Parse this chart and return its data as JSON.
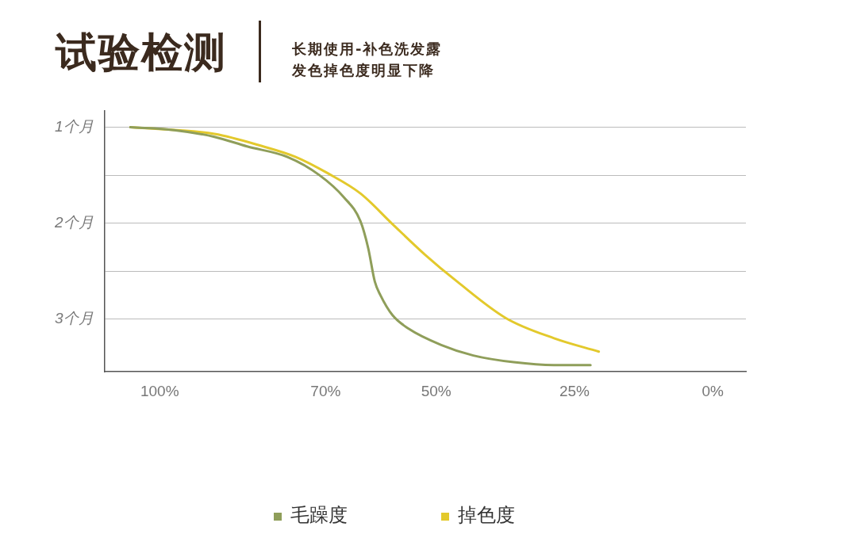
{
  "chart_data": {
    "type": "line",
    "title": "试验检测",
    "subtitle": "长期使用-补色洗发露发色掉色度明显下降",
    "xlim": [
      110,
      -6
    ],
    "xticks": [
      {
        "value": 100,
        "label": "100%"
      },
      {
        "value": 70,
        "label": "70%"
      },
      {
        "value": 50,
        "label": "50%"
      },
      {
        "value": 25,
        "label": "25%"
      },
      {
        "value": 0,
        "label": "0%"
      }
    ],
    "ylim": [
      3.55,
      0.83
    ],
    "yticks": [
      {
        "value": 1,
        "label": "1个月"
      },
      {
        "value": 1.5,
        "label": null
      },
      {
        "value": 2,
        "label": "2个月"
      },
      {
        "value": 2.5,
        "label": null
      },
      {
        "value": 3,
        "label": "3个月"
      }
    ],
    "grid": "y",
    "legend": "bottom",
    "marker": "none",
    "line_style": "solid",
    "series": [
      {
        "name": "毛躁度",
        "color": "#8f9e5a",
        "x": [
          105.3,
          97.4,
          90.1,
          84.2,
          76.9,
          71.1,
          66.7,
          63.7,
          62.3,
          61.1,
          60.1,
          57.9,
          55.0,
          49.1,
          43.3,
          36.0,
          28.7,
          22.1
        ],
        "values": [
          1,
          1.03,
          1.1,
          1.2,
          1.31,
          1.5,
          1.73,
          1.98,
          2.26,
          2.61,
          2.75,
          2.96,
          3.1,
          3.27,
          3.38,
          3.45,
          3.48,
          3.48
        ]
      },
      {
        "name": "掉色度",
        "color": "#e3c92c",
        "x": [
          105.3,
          90.1,
          81.3,
          75.4,
          69.6,
          63.7,
          57.9,
          52.0,
          46.2,
          37.4,
          28.7,
          20.6
        ],
        "values": [
          1,
          1.07,
          1.2,
          1.31,
          1.48,
          1.69,
          2.01,
          2.33,
          2.61,
          2.99,
          3.2,
          3.34
        ]
      }
    ]
  }
}
